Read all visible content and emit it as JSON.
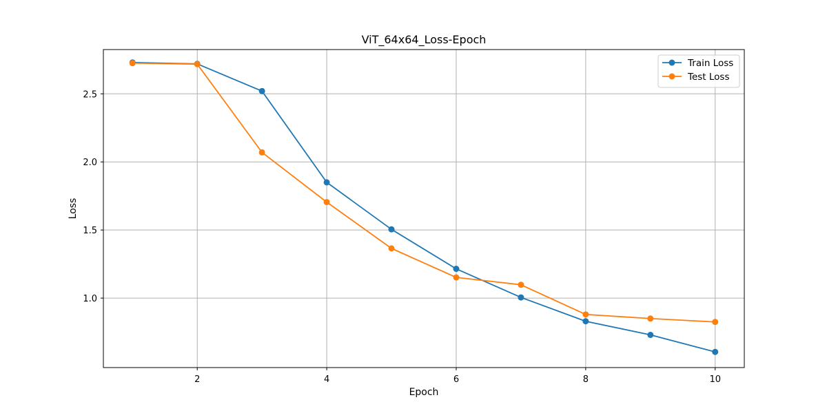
{
  "chart_data": {
    "type": "line",
    "title": "ViT_64x64_Loss-Epoch",
    "xlabel": "Epoch",
    "ylabel": "Loss",
    "x": [
      1,
      2,
      3,
      4,
      5,
      6,
      7,
      8,
      9,
      10
    ],
    "xlim": [
      0.55,
      10.45
    ],
    "ylim": [
      0.49,
      2.825
    ],
    "xticks": [
      2,
      4,
      6,
      8,
      10
    ],
    "yticks": [
      1.0,
      1.5,
      2.0,
      2.5
    ],
    "xtick_labels": [
      "2",
      "4",
      "6",
      "8",
      "10"
    ],
    "ytick_labels": [
      "1.0",
      "1.5",
      "2.0",
      "2.5"
    ],
    "grid": true,
    "legend_position": "top-right",
    "series": [
      {
        "name": "Train Loss",
        "color": "#1f77b4",
        "marker": "circle",
        "values": [
          2.73,
          2.72,
          2.52,
          1.85,
          1.505,
          1.215,
          1.005,
          0.83,
          0.73,
          0.605
        ]
      },
      {
        "name": "Test Loss",
        "color": "#ff7f0e",
        "marker": "circle",
        "values": [
          2.725,
          2.718,
          2.07,
          1.705,
          1.365,
          1.152,
          1.098,
          0.88,
          0.85,
          0.825
        ]
      }
    ]
  }
}
